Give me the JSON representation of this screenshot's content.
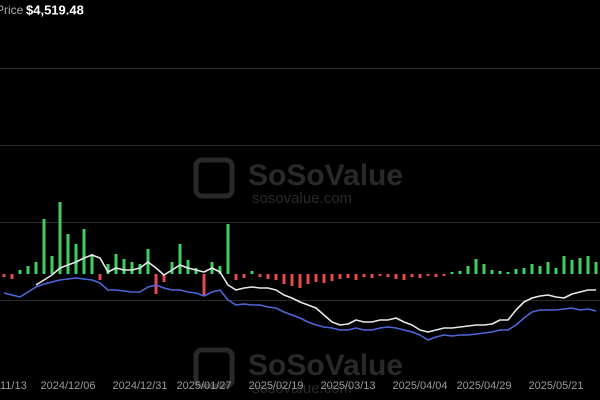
{
  "chart_data": {
    "type": "line",
    "header": {
      "label": "Price",
      "value": "$4,519.48"
    },
    "watermark": {
      "brand": "SoSoValue",
      "site": "sosovalue.com"
    },
    "categories": [
      null,
      "11/13",
      null,
      null,
      null,
      null,
      null,
      null,
      "2024/12/06",
      null,
      null,
      null,
      null,
      null,
      null,
      null,
      null,
      "2024/12/31",
      null,
      null,
      null,
      null,
      null,
      null,
      null,
      "2025/01/27",
      null,
      null,
      null,
      null,
      null,
      null,
      null,
      null,
      "2025/02/19",
      null,
      null,
      null,
      null,
      null,
      null,
      null,
      null,
      "2025/03/13",
      null,
      null,
      null,
      null,
      null,
      null,
      null,
      null,
      "2025/04/04",
      null,
      null,
      null,
      null,
      null,
      null,
      null,
      "2025/04/29",
      null,
      null,
      null,
      null,
      null,
      null,
      null,
      null,
      "2025/05/21",
      null,
      null,
      null,
      null,
      null
    ],
    "ylim": [
      0,
      370
    ],
    "y2lim": [
      -96,
      274
    ],
    "series": [
      {
        "type": "bar",
        "axis": "y2",
        "color": "#3ecf5f",
        "negative_color": "#e84a4a",
        "values": [
          -3,
          -5,
          4,
          8,
          12,
          55,
          18,
          72,
          40,
          30,
          45,
          20,
          -6,
          10,
          20,
          15,
          12,
          10,
          25,
          -20,
          -8,
          12,
          30,
          14,
          6,
          -22,
          12,
          8,
          50,
          -6,
          -4,
          3,
          -3,
          -5,
          -6,
          -10,
          -12,
          -14,
          -10,
          -8,
          -9,
          -7,
          -5,
          -4,
          -6,
          -3,
          -4,
          -2,
          -3,
          -5,
          -6,
          -3,
          -4,
          -2,
          -3,
          -2,
          2,
          3,
          8,
          15,
          10,
          4,
          3,
          2,
          5,
          6,
          10,
          8,
          12,
          6,
          18,
          14,
          16,
          18,
          12
        ]
      },
      {
        "type": "line",
        "color": "#4f66d8",
        "values": [
          77,
          75,
          73,
          78,
          83,
          86,
          88,
          90,
          91,
          92,
          91,
          90,
          87,
          80,
          80,
          79,
          78,
          78,
          83,
          85,
          82,
          80,
          80,
          78,
          77,
          74,
          78,
          80,
          70,
          65,
          66,
          65,
          65,
          63,
          62,
          58,
          55,
          52,
          48,
          45,
          43,
          42,
          40,
          40,
          42,
          40,
          40,
          42,
          43,
          42,
          40,
          38,
          35,
          30,
          33,
          35,
          34,
          35,
          35,
          36,
          37,
          38,
          40,
          40,
          45,
          52,
          58,
          60,
          60,
          60,
          61,
          62,
          60,
          61,
          59
        ]
      },
      {
        "type": "line",
        "name": "Price",
        "color": "#e8e8e8",
        "values": [
          null,
          null,
          null,
          null,
          85,
          90,
          95,
          102,
          105,
          108,
          112,
          115,
          112,
          98,
          102,
          100,
          100,
          102,
          108,
          102,
          95,
          100,
          105,
          102,
          100,
          98,
          102,
          98,
          85,
          80,
          82,
          83,
          82,
          82,
          80,
          75,
          72,
          68,
          65,
          62,
          55,
          48,
          45,
          46,
          50,
          48,
          48,
          50,
          50,
          52,
          48,
          45,
          40,
          38,
          40,
          42,
          42,
          43,
          44,
          45,
          45,
          46,
          50,
          50,
          60,
          68,
          72,
          74,
          75,
          73,
          72,
          76,
          78,
          80,
          80
        ]
      }
    ]
  }
}
